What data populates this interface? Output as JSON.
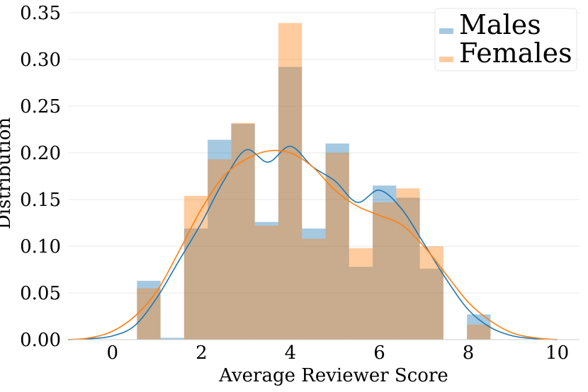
{
  "chart_data": {
    "type": "bar",
    "xlabel": "Average Reviewer Score",
    "ylabel": "Distribution",
    "xlim": [
      -1,
      10.5
    ],
    "ylim": [
      0,
      0.35
    ],
    "x_ticks": [
      0,
      2,
      4,
      6,
      8,
      10
    ],
    "y_ticks": [
      0.0,
      0.05,
      0.1,
      0.15,
      0.2,
      0.25,
      0.3,
      0.35
    ],
    "x_tick_labels": [
      "0",
      "2",
      "4",
      "6",
      "8",
      "10"
    ],
    "y_tick_labels": [
      "0.00",
      "0.05",
      "0.10",
      "0.15",
      "0.20",
      "0.25",
      "0.30",
      "0.35"
    ],
    "grid": "horizontal",
    "legend_position": "top-right",
    "bin_edges": [
      0.55,
      1.08,
      1.61,
      2.14,
      2.67,
      3.2,
      3.73,
      4.26,
      4.79,
      5.32,
      5.85,
      6.38,
      6.91,
      7.44,
      7.97,
      8.5
    ],
    "series": [
      {
        "name": "Males",
        "color": "#1f77b4",
        "values": [
          0.063,
          0.002,
          0.119,
          0.214,
          0.231,
          0.126,
          0.292,
          0.119,
          0.21,
          0.078,
          0.165,
          0.152,
          0.076,
          0.0,
          0.027
        ],
        "kde": [
          [
            -1,
            0.0
          ],
          [
            -0.5,
            0.001
          ],
          [
            0,
            0.004
          ],
          [
            0.5,
            0.015
          ],
          [
            1,
            0.045
          ],
          [
            1.5,
            0.085
          ],
          [
            2,
            0.125
          ],
          [
            2.5,
            0.17
          ],
          [
            3,
            0.203
          ],
          [
            3.5,
            0.19
          ],
          [
            4,
            0.207
          ],
          [
            4.5,
            0.185
          ],
          [
            5,
            0.17
          ],
          [
            5.5,
            0.147
          ],
          [
            6,
            0.16
          ],
          [
            6.5,
            0.14
          ],
          [
            7,
            0.103
          ],
          [
            7.5,
            0.065
          ],
          [
            8,
            0.032
          ],
          [
            8.5,
            0.013
          ],
          [
            9,
            0.004
          ],
          [
            9.5,
            0.001
          ],
          [
            10,
            0.0
          ]
        ]
      },
      {
        "name": "Females",
        "color": "#ff7f0e",
        "values": [
          0.055,
          0.0,
          0.154,
          0.193,
          0.232,
          0.122,
          0.339,
          0.108,
          0.2,
          0.098,
          0.147,
          0.162,
          0.1,
          0.0,
          0.016
        ],
        "kde": [
          [
            -1,
            0.0
          ],
          [
            -0.5,
            0.002
          ],
          [
            0,
            0.009
          ],
          [
            0.5,
            0.025
          ],
          [
            1,
            0.052
          ],
          [
            1.5,
            0.095
          ],
          [
            2,
            0.14
          ],
          [
            2.5,
            0.175
          ],
          [
            3,
            0.193
          ],
          [
            3.5,
            0.202
          ],
          [
            4,
            0.2
          ],
          [
            4.5,
            0.185
          ],
          [
            5,
            0.16
          ],
          [
            5.5,
            0.143
          ],
          [
            6,
            0.133
          ],
          [
            6.5,
            0.123
          ],
          [
            7,
            0.1
          ],
          [
            7.5,
            0.07
          ],
          [
            8,
            0.04
          ],
          [
            8.5,
            0.02
          ],
          [
            9,
            0.007
          ],
          [
            9.5,
            0.002
          ],
          [
            10,
            0.0
          ]
        ]
      }
    ]
  }
}
